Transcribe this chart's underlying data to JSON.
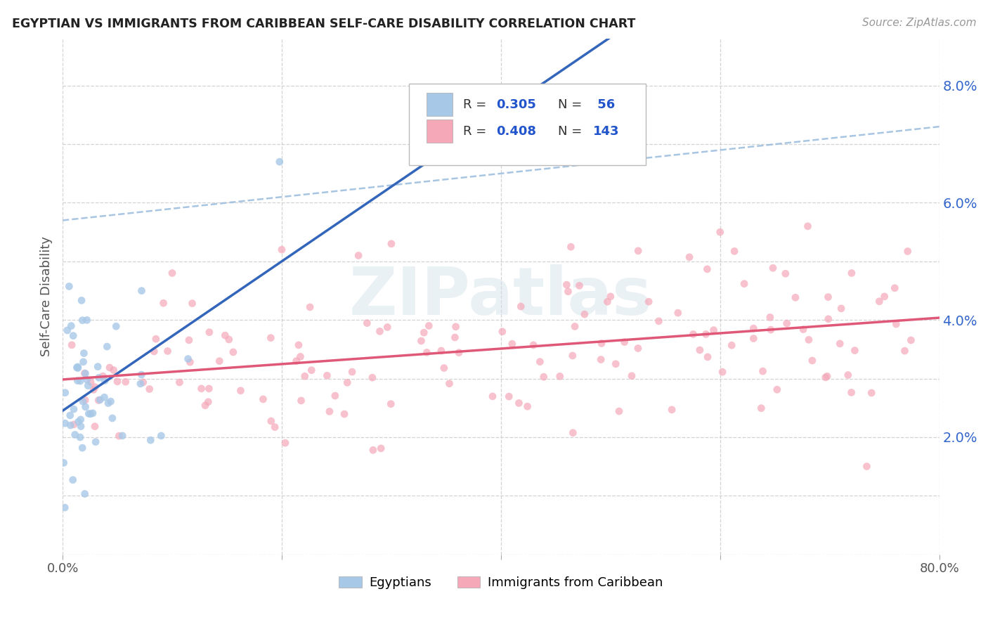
{
  "title": "EGYPTIAN VS IMMIGRANTS FROM CARIBBEAN SELF-CARE DISABILITY CORRELATION CHART",
  "source": "Source: ZipAtlas.com",
  "ylabel": "Self-Care Disability",
  "xlim": [
    0.0,
    0.8
  ],
  "ylim": [
    0.0,
    0.088
  ],
  "yticks": [
    0.02,
    0.04,
    0.06,
    0.08
  ],
  "ytick_labels": [
    "2.0%",
    "4.0%",
    "6.0%",
    "8.0%"
  ],
  "xticks": [
    0.0,
    0.2,
    0.4,
    0.6,
    0.8
  ],
  "xtick_labels": [
    "0.0%",
    "",
    "",
    "",
    "80.0%"
  ],
  "bg_color": "#ffffff",
  "grid_color": "#c8c8c8",
  "watermark": "ZIPatlas",
  "egyptian_color": "#a8c8e8",
  "caribbean_color": "#f4a8b8",
  "trend_egyptian_color": "#3366bb",
  "trend_caribbean_color": "#e05878",
  "dash_color": "#99bbdd",
  "R_egyptian": 0.305,
  "N_egyptian": 56,
  "R_caribbean": 0.408,
  "N_caribbean": 143,
  "legend_val_color": "#2255cc",
  "legend_label_color": "#333333"
}
